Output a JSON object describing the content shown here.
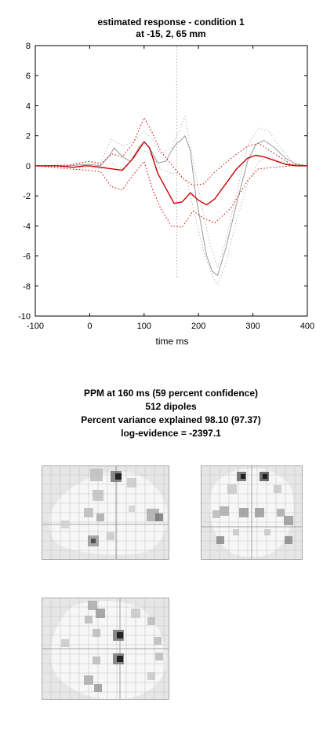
{
  "chart_data": {
    "type": "line",
    "title": "estimated response - condition 1",
    "subtitle": "at -15, 2, 65 mm",
    "xlabel": "time  ms",
    "ylabel": "",
    "xlim": [
      -100,
      400
    ],
    "ylim": [
      -10,
      8
    ],
    "xticks": [
      "-100",
      "0",
      "100",
      "200",
      "300",
      "400"
    ],
    "yticks": [
      "-10",
      "-8",
      "-6",
      "-4",
      "-2",
      "0",
      "2",
      "4",
      "6",
      "8"
    ],
    "grid": false,
    "legend": "none",
    "series": [
      {
        "role": "estimate",
        "color": "#cc0000",
        "style": "solid",
        "x": [
          -100,
          -60,
          -30,
          -10,
          0,
          20,
          40,
          60,
          80,
          100,
          110,
          125,
          140,
          155,
          170,
          185,
          200,
          215,
          230,
          250,
          270,
          290,
          305,
          320,
          340,
          360,
          380,
          400
        ],
        "y": [
          0,
          0,
          -0.1,
          0,
          0,
          -0.1,
          -0.2,
          -0.3,
          0.5,
          1.6,
          1.2,
          -0.5,
          -1.5,
          -2.5,
          -2.4,
          -1.8,
          -2.3,
          -2.6,
          -2.2,
          -1.2,
          -0.2,
          0.5,
          0.7,
          0.6,
          0.35,
          0.1,
          0,
          0
        ]
      },
      {
        "role": "estimate-upper",
        "color": "#cc0000",
        "style": "dotted",
        "x": [
          -100,
          -40,
          0,
          20,
          40,
          60,
          80,
          100,
          115,
          130,
          150,
          170,
          190,
          210,
          230,
          260,
          290,
          310,
          340,
          370,
          400
        ],
        "y": [
          0,
          0.05,
          0.3,
          0.1,
          0.8,
          0.6,
          1.5,
          3.2,
          2.2,
          1,
          0.1,
          -0.8,
          -1.3,
          -1.2,
          -0.4,
          0.5,
          1.3,
          1.5,
          0.8,
          0.1,
          0
        ]
      },
      {
        "role": "estimate-lower",
        "color": "#cc0000",
        "style": "dotted",
        "x": [
          -100,
          -40,
          0,
          20,
          40,
          60,
          80,
          100,
          115,
          130,
          150,
          170,
          190,
          210,
          230,
          260,
          290,
          310,
          340,
          370,
          400
        ],
        "y": [
          0,
          -0.2,
          -0.3,
          -0.4,
          -1.4,
          -1.6,
          -0.6,
          0.3,
          -1.5,
          -2.8,
          -4.0,
          -4.1,
          -3.0,
          -3.5,
          -3.8,
          -2.8,
          -1.0,
          -0.2,
          -0.1,
          0,
          0
        ]
      },
      {
        "role": "response",
        "color": "#999999",
        "style": "solid",
        "x": [
          -100,
          -40,
          0,
          20,
          35,
          45,
          60,
          75,
          90,
          100,
          110,
          125,
          140,
          150,
          160,
          165,
          175,
          185,
          195,
          205,
          215,
          225,
          235,
          250,
          270,
          290,
          305,
          320,
          340,
          360,
          380,
          400
        ],
        "y": [
          0,
          0,
          0.1,
          0,
          0.6,
          1.2,
          0.6,
          0.3,
          1.2,
          1.6,
          1.2,
          0.2,
          0.3,
          1.0,
          1.5,
          1.6,
          2.0,
          1.0,
          -2.0,
          -4.0,
          -6.0,
          -7.0,
          -7.3,
          -5.5,
          -2.5,
          0.3,
          1.4,
          1.7,
          1.2,
          0.5,
          0.1,
          0
        ]
      },
      {
        "role": "response-upper",
        "color": "#bbbbbb",
        "style": "dotted",
        "x": [
          -100,
          -40,
          0,
          20,
          40,
          60,
          80,
          100,
          115,
          130,
          150,
          160,
          165,
          175,
          190,
          205,
          220,
          235,
          250,
          270,
          290,
          310,
          330,
          350,
          375,
          400
        ],
        "y": [
          0,
          0,
          0.3,
          0.2,
          1.8,
          1.3,
          1.6,
          2.3,
          1.8,
          0.8,
          1.2,
          2.0,
          2.4,
          3.3,
          0.3,
          -2.5,
          -5.0,
          -6.8,
          -5.0,
          -1.8,
          1.3,
          2.5,
          2.3,
          1.2,
          0.2,
          0
        ]
      },
      {
        "role": "response-lower",
        "color": "#bbbbbb",
        "style": "dotted",
        "x": [
          -100,
          -40,
          0,
          20,
          40,
          60,
          80,
          100,
          115,
          130,
          150,
          165,
          180,
          195,
          210,
          225,
          235,
          250,
          270,
          290,
          310,
          330,
          350,
          375,
          400
        ],
        "y": [
          0,
          -0.1,
          -0.1,
          -0.2,
          0.2,
          -0.2,
          0.5,
          1.0,
          0.7,
          -0.2,
          -0.5,
          -0.5,
          -1.2,
          -3.5,
          -5.8,
          -7.3,
          -7.9,
          -6.5,
          -3.6,
          -1.2,
          0.3,
          0.6,
          0.3,
          0,
          0
        ]
      },
      {
        "role": "pst-marker",
        "color": "#aaaaaa",
        "style": "dotted",
        "x": [
          160,
          160
        ],
        "y": [
          -7.4,
          8
        ]
      }
    ]
  },
  "ppm": {
    "line1": "PPM at 160 ms (59 percent confidence)",
    "line2": "512 dipoles",
    "line3": "Percent variance explained 98.10 (97.37)",
    "line4": "log-evidence = -2397.1"
  }
}
